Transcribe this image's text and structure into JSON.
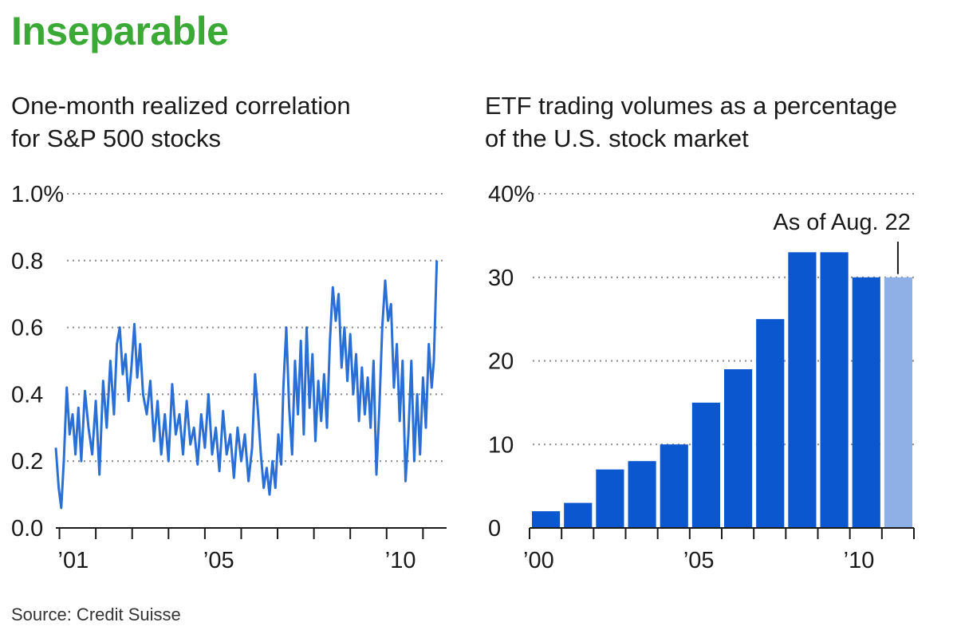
{
  "headline": "Inseparable",
  "source": "Source:  Credit Suisse",
  "colors": {
    "headline": "#3aa935",
    "series": "#2a6fd6",
    "bar": "#0b57d0",
    "bar_highlight": "#8fb0e6",
    "grid": "#8a8a8a"
  },
  "chart_data": [
    {
      "type": "line",
      "title": "One-month realized correlation for S&P 500 stocks",
      "title_lines": [
        "One-month realized correlation",
        "for S&P 500 stocks"
      ],
      "x_tick_labels": [
        "’01",
        "’05",
        "’10"
      ],
      "x_tick_label_years": [
        2001,
        2005,
        2010
      ],
      "xlim": [
        2000.9,
        2011.65
      ],
      "y_ticks": [
        0.0,
        0.2,
        0.4,
        0.6,
        0.8,
        1.0
      ],
      "y_tick_labels": [
        "0.0",
        "0.2",
        "0.4",
        "0.6",
        "0.8",
        "1.0%"
      ],
      "ylim": [
        0,
        1.0
      ],
      "grid": true,
      "series": [
        {
          "values": [
            [
              2000.9,
              0.24
            ],
            [
              2000.98,
              0.12
            ],
            [
              2001.05,
              0.06
            ],
            [
              2001.12,
              0.2
            ],
            [
              2001.2,
              0.42
            ],
            [
              2001.28,
              0.28
            ],
            [
              2001.36,
              0.34
            ],
            [
              2001.44,
              0.22
            ],
            [
              2001.52,
              0.36
            ],
            [
              2001.6,
              0.2
            ],
            [
              2001.7,
              0.41
            ],
            [
              2001.8,
              0.3
            ],
            [
              2001.9,
              0.22
            ],
            [
              2002.0,
              0.38
            ],
            [
              2002.1,
              0.16
            ],
            [
              2002.2,
              0.44
            ],
            [
              2002.3,
              0.3
            ],
            [
              2002.4,
              0.5
            ],
            [
              2002.5,
              0.34
            ],
            [
              2002.58,
              0.55
            ],
            [
              2002.66,
              0.6
            ],
            [
              2002.74,
              0.46
            ],
            [
              2002.82,
              0.52
            ],
            [
              2002.9,
              0.38
            ],
            [
              2002.98,
              0.48
            ],
            [
              2003.06,
              0.61
            ],
            [
              2003.14,
              0.45
            ],
            [
              2003.22,
              0.55
            ],
            [
              2003.3,
              0.4
            ],
            [
              2003.4,
              0.34
            ],
            [
              2003.5,
              0.44
            ],
            [
              2003.6,
              0.26
            ],
            [
              2003.7,
              0.38
            ],
            [
              2003.8,
              0.22
            ],
            [
              2003.9,
              0.34
            ],
            [
              2004.0,
              0.2
            ],
            [
              2004.1,
              0.43
            ],
            [
              2004.2,
              0.28
            ],
            [
              2004.3,
              0.34
            ],
            [
              2004.4,
              0.22
            ],
            [
              2004.5,
              0.38
            ],
            [
              2004.6,
              0.25
            ],
            [
              2004.7,
              0.3
            ],
            [
              2004.8,
              0.19
            ],
            [
              2004.9,
              0.34
            ],
            [
              2005.0,
              0.24
            ],
            [
              2005.1,
              0.4
            ],
            [
              2005.2,
              0.22
            ],
            [
              2005.3,
              0.3
            ],
            [
              2005.4,
              0.17
            ],
            [
              2005.5,
              0.35
            ],
            [
              2005.6,
              0.22
            ],
            [
              2005.7,
              0.28
            ],
            [
              2005.8,
              0.15
            ],
            [
              2005.9,
              0.3
            ],
            [
              2006.0,
              0.2
            ],
            [
              2006.1,
              0.28
            ],
            [
              2006.2,
              0.14
            ],
            [
              2006.3,
              0.24
            ],
            [
              2006.38,
              0.46
            ],
            [
              2006.46,
              0.35
            ],
            [
              2006.54,
              0.22
            ],
            [
              2006.62,
              0.12
            ],
            [
              2006.7,
              0.18
            ],
            [
              2006.78,
              0.1
            ],
            [
              2006.86,
              0.2
            ],
            [
              2006.94,
              0.12
            ],
            [
              2007.02,
              0.28
            ],
            [
              2007.1,
              0.19
            ],
            [
              2007.16,
              0.42
            ],
            [
              2007.24,
              0.6
            ],
            [
              2007.32,
              0.36
            ],
            [
              2007.4,
              0.22
            ],
            [
              2007.48,
              0.5
            ],
            [
              2007.56,
              0.34
            ],
            [
              2007.64,
              0.56
            ],
            [
              2007.72,
              0.28
            ],
            [
              2007.8,
              0.6
            ],
            [
              2007.88,
              0.36
            ],
            [
              2007.96,
              0.52
            ],
            [
              2008.04,
              0.26
            ],
            [
              2008.12,
              0.44
            ],
            [
              2008.2,
              0.32
            ],
            [
              2008.28,
              0.46
            ],
            [
              2008.36,
              0.3
            ],
            [
              2008.44,
              0.56
            ],
            [
              2008.52,
              0.72
            ],
            [
              2008.6,
              0.62
            ],
            [
              2008.68,
              0.7
            ],
            [
              2008.76,
              0.48
            ],
            [
              2008.84,
              0.6
            ],
            [
              2008.92,
              0.44
            ],
            [
              2009.0,
              0.58
            ],
            [
              2009.08,
              0.4
            ],
            [
              2009.16,
              0.52
            ],
            [
              2009.24,
              0.32
            ],
            [
              2009.32,
              0.48
            ],
            [
              2009.4,
              0.34
            ],
            [
              2009.48,
              0.45
            ],
            [
              2009.56,
              0.3
            ],
            [
              2009.64,
              0.5
            ],
            [
              2009.72,
              0.16
            ],
            [
              2009.8,
              0.36
            ],
            [
              2009.88,
              0.6
            ],
            [
              2009.96,
              0.74
            ],
            [
              2010.04,
              0.62
            ],
            [
              2010.12,
              0.67
            ],
            [
              2010.2,
              0.42
            ],
            [
              2010.28,
              0.55
            ],
            [
              2010.36,
              0.32
            ],
            [
              2010.44,
              0.5
            ],
            [
              2010.52,
              0.14
            ],
            [
              2010.6,
              0.28
            ],
            [
              2010.68,
              0.5
            ],
            [
              2010.76,
              0.2
            ],
            [
              2010.84,
              0.4
            ],
            [
              2010.92,
              0.22
            ],
            [
              2011.0,
              0.45
            ],
            [
              2011.08,
              0.3
            ],
            [
              2011.16,
              0.55
            ],
            [
              2011.24,
              0.42
            ],
            [
              2011.3,
              0.5
            ],
            [
              2011.38,
              0.8
            ]
          ]
        }
      ]
    },
    {
      "type": "bar",
      "title": "ETF trading volumes as a percentage of the U.S. stock market",
      "title_lines": [
        "ETF trading volumes as a percentage",
        "of the U.S. stock market"
      ],
      "categories": [
        2000,
        2001,
        2002,
        2003,
        2004,
        2005,
        2006,
        2007,
        2008,
        2009,
        2010,
        2011
      ],
      "values": [
        2,
        3,
        7,
        8,
        10,
        15,
        19,
        25,
        33,
        33,
        30,
        30
      ],
      "highlight_index": 11,
      "x_tick_labels": [
        "’00",
        "’05",
        "’10"
      ],
      "x_tick_label_years": [
        2000,
        2005,
        2010
      ],
      "y_ticks": [
        0,
        10,
        20,
        30,
        40
      ],
      "y_tick_labels": [
        "0",
        "10",
        "20",
        "30",
        "40%"
      ],
      "ylim": [
        0,
        40
      ],
      "annotation": "As of Aug. 22",
      "grid": true
    }
  ]
}
